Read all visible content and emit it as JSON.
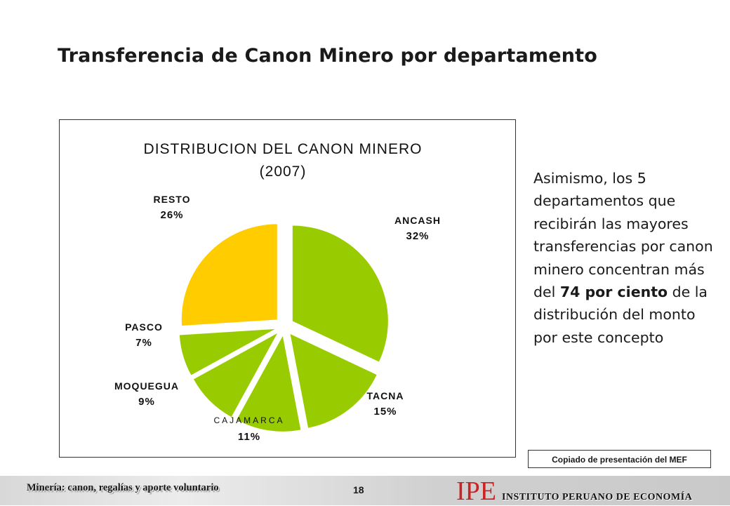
{
  "slide": {
    "title": "Transferencia de Canon Minero por departamento"
  },
  "chart_data": {
    "type": "pie",
    "title": "DISTRIBUCION DEL CANON MINERO",
    "subtitle": "(2007)",
    "slices": [
      {
        "label": "ANCASH",
        "value": 32,
        "value_label": "32%",
        "color": "#99cc00"
      },
      {
        "label": "TACNA",
        "value": 15,
        "value_label": "15%",
        "color": "#99cc00"
      },
      {
        "label": "CAJAMARCA",
        "value": 11,
        "value_label": "11%",
        "color": "#99cc00"
      },
      {
        "label": "MOQUEGUA",
        "value": 9,
        "value_label": "9%",
        "color": "#99cc00"
      },
      {
        "label": "PASCO",
        "value": 7,
        "value_label": "7%",
        "color": "#99cc00"
      },
      {
        "label": "RESTO",
        "value": 26,
        "value_label": "26%",
        "color": "#ffcc00"
      }
    ]
  },
  "side_text": {
    "before": "Asimismo, los 5 departamentos que recibirán las mayores transferencias por canon minero concentran más del ",
    "bold": "74 por ciento",
    "after": " de la distribución del monto por este concepto"
  },
  "source_note": "Copiado de presentación del MEF",
  "footer": {
    "left_text": "Minería: canon, regalías y aporte voluntario",
    "page_number": "18",
    "logo_mark": "IPE",
    "logo_text": "INSTITUTO PERUANO DE ECONOMÍA"
  },
  "colors": {
    "green_slice": "#99cc00",
    "yellow_slice": "#ffcc00",
    "logo_red": "#cc2222"
  }
}
